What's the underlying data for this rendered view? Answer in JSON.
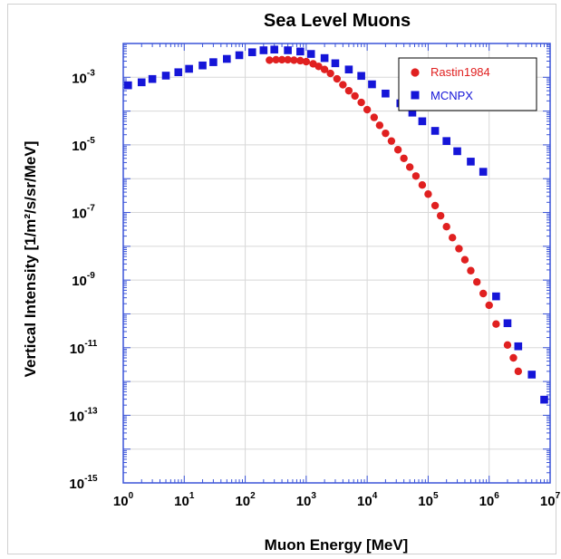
{
  "chart_data": {
    "type": "scatter",
    "title": "Sea Level Muons",
    "xlabel": "Muon Energy [MeV]",
    "ylabel": "Vertical Intensity [1/m²/s/sr/MeV]",
    "x_scale": "log",
    "y_scale": "log",
    "xlim": [
      1,
      10000000
    ],
    "ylim": [
      1e-15,
      0.01
    ],
    "x_ticks": [
      "10",
      "10",
      "10",
      "10",
      "10",
      "10",
      "10",
      "10"
    ],
    "x_tick_exponents": [
      "0",
      "1",
      "2",
      "3",
      "4",
      "5",
      "6",
      "7"
    ],
    "y_ticks": [
      "10",
      "10",
      "10",
      "10",
      "10",
      "10",
      "10"
    ],
    "y_tick_exponents": [
      "-3",
      "-5",
      "-7",
      "-9",
      "-11",
      "-13",
      "-15"
    ],
    "grid": true,
    "legend_position": "top-right",
    "series": [
      {
        "name": "Rastin1984",
        "color": "#e02020",
        "marker": "circle",
        "points": [
          [
            250,
            0.0032
          ],
          [
            320,
            0.0033
          ],
          [
            400,
            0.0033
          ],
          [
            500,
            0.0033
          ],
          [
            630,
            0.0032
          ],
          [
            800,
            0.0031
          ],
          [
            1000,
            0.0029
          ],
          [
            1300,
            0.0025
          ],
          [
            1600,
            0.0021
          ],
          [
            2000,
            0.0017
          ],
          [
            2500,
            0.0013
          ],
          [
            3200,
            0.0009
          ],
          [
            4000,
            0.0006
          ],
          [
            5000,
            0.0004
          ],
          [
            6300,
            0.00028
          ],
          [
            8000,
            0.00018
          ],
          [
            10000,
            0.00011
          ],
          [
            13000,
            6.5e-05
          ],
          [
            16000,
            3.8e-05
          ],
          [
            20000,
            2.2e-05
          ],
          [
            25000,
            1.3e-05
          ],
          [
            32000,
            7.2e-06
          ],
          [
            40000,
            4e-06
          ],
          [
            50000,
            2.2e-06
          ],
          [
            63000,
            1.2e-06
          ],
          [
            80000,
            6.5e-07
          ],
          [
            100000,
            3.5e-07
          ],
          [
            130000,
            1.6e-07
          ],
          [
            160000,
            8e-08
          ],
          [
            200000,
            3.8e-08
          ],
          [
            250000,
            1.8e-08
          ],
          [
            320000,
            8.5e-09
          ],
          [
            400000,
            4e-09
          ],
          [
            500000,
            1.9e-09
          ],
          [
            630000,
            8.8e-10
          ],
          [
            800000,
            4e-10
          ],
          [
            1000000,
            1.8e-10
          ],
          [
            1300000,
            5e-11
          ],
          [
            2000000,
            1.2e-11
          ],
          [
            2500000,
            5e-12
          ],
          [
            3000000,
            2e-12
          ]
        ]
      },
      {
        "name": "MCNPX",
        "color": "#1515d8",
        "marker": "square",
        "points": [
          [
            1.2,
            0.00058
          ],
          [
            2,
            0.00071
          ],
          [
            3,
            0.00089
          ],
          [
            5,
            0.00112
          ],
          [
            8,
            0.00141
          ],
          [
            12,
            0.00178
          ],
          [
            20,
            0.00224
          ],
          [
            30,
            0.0028
          ],
          [
            50,
            0.0035
          ],
          [
            80,
            0.0045
          ],
          [
            130,
            0.0055
          ],
          [
            200,
            0.0063
          ],
          [
            300,
            0.0066
          ],
          [
            500,
            0.0063
          ],
          [
            800,
            0.0058
          ],
          [
            1200,
            0.0049
          ],
          [
            2000,
            0.0037
          ],
          [
            3000,
            0.0026
          ],
          [
            5000,
            0.0017
          ],
          [
            8000,
            0.0011
          ],
          [
            12000,
            0.00062
          ],
          [
            20000,
            0.00033
          ],
          [
            35000,
            0.00017
          ],
          [
            55000,
            9e-05
          ],
          [
            80000,
            5e-05
          ],
          [
            130000,
            2.6e-05
          ],
          [
            200000,
            1.3e-05
          ],
          [
            300000,
            6.5e-06
          ],
          [
            500000,
            3.2e-06
          ],
          [
            800000,
            1.6e-06
          ],
          [
            1300000,
            3.3e-10
          ],
          [
            2000000,
            5.3e-11
          ],
          [
            3000000,
            1.1e-11
          ],
          [
            5000000,
            1.6e-12
          ],
          [
            8000000,
            2.9e-13
          ]
        ]
      }
    ]
  }
}
